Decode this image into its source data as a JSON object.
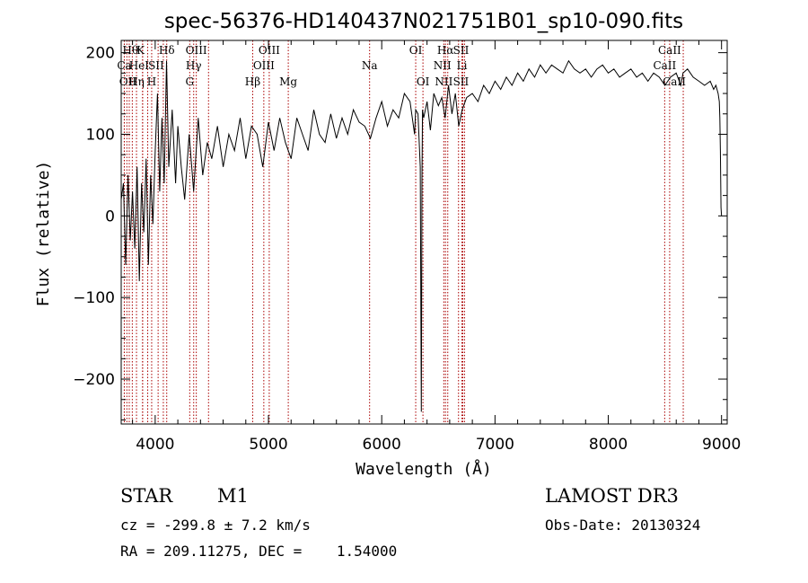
{
  "chart_data": {
    "type": "line",
    "title": "spec-56376-HD140437N021751B01_sp10-090.fits",
    "xlabel": "Wavelength (Å)",
    "ylabel": "Flux (relative)",
    "xlim": [
      3700,
      9050
    ],
    "ylim": [
      -255,
      215
    ],
    "xticks": [
      4000,
      5000,
      6000,
      7000,
      8000,
      9000
    ],
    "yticks": [
      -200,
      -100,
      0,
      100,
      200
    ],
    "grid": false,
    "line_color": "#000000",
    "marker_color": "#aa0000",
    "series": [
      {
        "name": "flux",
        "x": [
          3700,
          3720,
          3740,
          3760,
          3780,
          3800,
          3820,
          3840,
          3860,
          3880,
          3900,
          3920,
          3940,
          3960,
          3980,
          4000,
          4020,
          4040,
          4060,
          4080,
          4100,
          4120,
          4150,
          4180,
          4200,
          4230,
          4260,
          4300,
          4340,
          4380,
          4420,
          4460,
          4500,
          4550,
          4600,
          4650,
          4700,
          4750,
          4800,
          4850,
          4900,
          4950,
          5000,
          5050,
          5100,
          5150,
          5200,
          5250,
          5300,
          5350,
          5400,
          5450,
          5500,
          5550,
          5600,
          5650,
          5700,
          5750,
          5800,
          5850,
          5900,
          5950,
          6000,
          6050,
          6100,
          6150,
          6200,
          6250,
          6290,
          6300,
          6320,
          6340,
          6350,
          6355,
          6360,
          6370,
          6400,
          6430,
          6460,
          6500,
          6530,
          6560,
          6590,
          6620,
          6650,
          6680,
          6710,
          6750,
          6800,
          6850,
          6900,
          6950,
          7000,
          7050,
          7100,
          7150,
          7200,
          7250,
          7300,
          7350,
          7400,
          7450,
          7500,
          7550,
          7600,
          7650,
          7700,
          7750,
          7800,
          7850,
          7900,
          7950,
          8000,
          8050,
          8100,
          8150,
          8200,
          8250,
          8300,
          8350,
          8400,
          8450,
          8500,
          8550,
          8600,
          8640,
          8660,
          8700,
          8750,
          8800,
          8850,
          8900,
          8930,
          8950,
          8970,
          8980,
          8985,
          8990,
          8995,
          9000
        ],
        "y": [
          20,
          40,
          -60,
          50,
          -30,
          30,
          -40,
          60,
          -80,
          40,
          -20,
          70,
          -60,
          50,
          -10,
          80,
          150,
          30,
          120,
          40,
          190,
          60,
          130,
          40,
          110,
          60,
          20,
          100,
          30,
          120,
          50,
          90,
          70,
          110,
          60,
          100,
          80,
          120,
          70,
          110,
          100,
          60,
          115,
          80,
          120,
          90,
          70,
          120,
          100,
          80,
          130,
          100,
          90,
          125,
          95,
          120,
          100,
          130,
          115,
          110,
          95,
          120,
          140,
          110,
          130,
          120,
          150,
          140,
          100,
          130,
          125,
          60,
          -240,
          40,
          130,
          120,
          140,
          105,
          150,
          135,
          145,
          120,
          160,
          125,
          150,
          110,
          130,
          145,
          150,
          140,
          160,
          150,
          165,
          155,
          170,
          160,
          175,
          165,
          180,
          170,
          185,
          175,
          185,
          180,
          175,
          190,
          180,
          175,
          180,
          170,
          180,
          185,
          175,
          180,
          170,
          175,
          180,
          170,
          175,
          165,
          175,
          170,
          160,
          170,
          175,
          160,
          175,
          180,
          170,
          165,
          160,
          165,
          155,
          160,
          150,
          140,
          120,
          80,
          10,
          0
        ]
      }
    ],
    "spectral_lines": [
      {
        "name": "Hθ",
        "x": 3798,
        "row": 0,
        "dx": -2
      },
      {
        "name": "K",
        "x": 3934,
        "row": 0,
        "dx": -8
      },
      {
        "name": "Hδ",
        "x": 4102,
        "row": 0,
        "dx": 0
      },
      {
        "name": "OIII",
        "x": 4363,
        "row": 0,
        "dx": 0
      },
      {
        "name": "OIII",
        "x": 5007,
        "row": 0,
        "dx": 0
      },
      {
        "name": "OI",
        "x": 6300,
        "row": 0,
        "dx": 0
      },
      {
        "name": "Hα",
        "x": 6563,
        "row": 0,
        "dx": 0
      },
      {
        "name": "SII",
        "x": 6716,
        "row": 0,
        "dx": -2
      },
      {
        "name": "CaII",
        "x": 8542,
        "row": 0,
        "dx": 0
      },
      {
        "name": "Ca",
        "x": 3728,
        "row": 1,
        "dx": 0
      },
      {
        "name": "HeI",
        "x": 3889,
        "row": 1,
        "dx": -4
      },
      {
        "name": "SII",
        "x": 4072,
        "row": 1,
        "dx": -8
      },
      {
        "name": "Hγ",
        "x": 4340,
        "row": 1,
        "dx": 0
      },
      {
        "name": "OIII",
        "x": 4959,
        "row": 1,
        "dx": 0
      },
      {
        "name": "Na",
        "x": 5893,
        "row": 1,
        "dx": 0
      },
      {
        "name": "NII",
        "x": 6583,
        "row": 1,
        "dx": -6
      },
      {
        "name": "Li",
        "x": 6708,
        "row": 1,
        "dx": 0
      },
      {
        "name": "CaII",
        "x": 8498,
        "row": 1,
        "dx": 0
      },
      {
        "name": "OII",
        "x": 3727,
        "row": 2,
        "dx": 4
      },
      {
        "name": "Hη",
        "x": 3835,
        "row": 2,
        "dx": 0
      },
      {
        "name": "H",
        "x": 3969,
        "row": 2,
        "dx": 0
      },
      {
        "name": "G",
        "x": 4305,
        "row": 2,
        "dx": 0
      },
      {
        "name": "Hβ",
        "x": 4861,
        "row": 2,
        "dx": 0
      },
      {
        "name": "Mg",
        "x": 5175,
        "row": 2,
        "dx": 0
      },
      {
        "name": "OI",
        "x": 6364,
        "row": 2,
        "dx": 0
      },
      {
        "name": "NII",
        "x": 6548,
        "row": 2,
        "dx": 0
      },
      {
        "name": "SII",
        "x": 6731,
        "row": 2,
        "dx": -4
      },
      {
        "name": "CaII",
        "x": 8662,
        "row": 2,
        "dx": -10
      }
    ],
    "extra_lines": [
      3750,
      3771,
      3889,
      4026,
      4471,
      6678
    ]
  },
  "info": {
    "object_type": "STAR",
    "subclass": "M1",
    "survey": "LAMOST DR3",
    "cz": "cz = -299.8 ± 7.2 km/s",
    "obs_date": "Obs-Date: 20130324",
    "radec": "RA = 209.11275, DEC =    1.54000"
  }
}
